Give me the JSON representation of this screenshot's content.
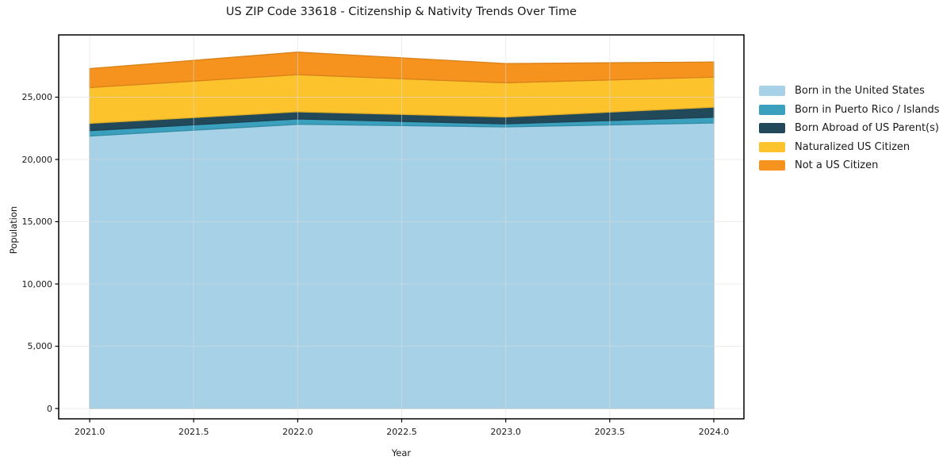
{
  "title": "US ZIP Code 33618 - Citizenship & Nativity Trends Over Time",
  "chart_data": {
    "type": "area",
    "stacked": true,
    "title": "US ZIP Code 33618 - Citizenship & Nativity Trends Over Time",
    "xlabel": "Year",
    "ylabel": "Population",
    "x": [
      2021,
      2022,
      2023,
      2024
    ],
    "series": [
      {
        "name": "Born in the United States",
        "color": "#a6d1e6",
        "values": [
          21880,
          22820,
          22610,
          22930
        ]
      },
      {
        "name": "Born in Puerto Rico / Islands",
        "color": "#3ba0bd",
        "values": [
          430,
          430,
          250,
          460
        ]
      },
      {
        "name": "Born Abroad of US Parent(s)",
        "color": "#21495a",
        "values": [
          590,
          580,
          550,
          810
        ]
      },
      {
        "name": "Naturalized US Citizen",
        "color": "#fdc32d",
        "values": [
          2870,
          2980,
          2740,
          2410
        ]
      },
      {
        "name": "Not a US Citizen",
        "color": "#f6931e",
        "values": [
          1520,
          1810,
          1550,
          1210
        ]
      }
    ],
    "xlim": [
      2020.851,
      2024.145
    ],
    "ylim": [
      -828,
      30000
    ],
    "xticks": {
      "values": [
        2021.0,
        2021.5,
        2022.0,
        2022.5,
        2023.0,
        2023.5,
        2024.0
      ],
      "labels": [
        "2021.0",
        "2021.5",
        "2022.0",
        "2022.5",
        "2023.0",
        "2023.5",
        "2024.0"
      ]
    },
    "yticks": {
      "values": [
        0,
        5000,
        10000,
        15000,
        20000,
        25000
      ],
      "labels": [
        "0",
        "5,000",
        "10,000",
        "15,000",
        "20,000",
        "25,000"
      ]
    },
    "grid": true,
    "legend_position": "right of plot, no frame"
  }
}
